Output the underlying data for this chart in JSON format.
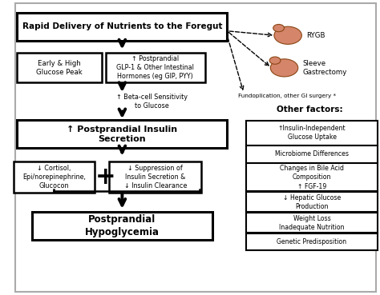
{
  "bg_color": "#ffffff",
  "box_color": "white",
  "box_edge": "black",
  "text_color": "black",
  "title": "Rapid Delivery of Nutrients to the Foregut",
  "box1_left": "Early & High\nGlucose Peak",
  "box1_right": "↑ Postprandial\nGLP-1 & Other Intestinal\nHormones (eg GIP, PYY)",
  "beta_text": "↑ Beta-cell Sensitivity\nto Glucose",
  "box2": "↑ Postprandial Insulin\nSecretion",
  "box3_left": "↓ Cortisol,\nEpi/norepinephrine,\nGlucocon",
  "box3_right": "↓ Suppression of\nInsulin Secretion &\n↓ Insulin Clearance",
  "box4": "Postprandial\nHypoglycemia",
  "surgery_label1": "RYGB",
  "surgery_label2": "Sleeve\nGastrectomy",
  "surgery_label3": "Fundoplication, other GI surgery *",
  "other_title": "Other factors:",
  "other_boxes": [
    "↑Insulin-Independent\nGlucose Uptake",
    "Microbiome Differences",
    "Changes in Bile Acid\nComposition\n↑ FGF-19",
    "↓ Hepatic Glucose\nProduction",
    "Weight Loss\nInadequate Nutrition",
    "Genetic Predisposition"
  ],
  "lw_main": 2.0,
  "lw_other": 1.5,
  "arrow_lw": 2.5
}
